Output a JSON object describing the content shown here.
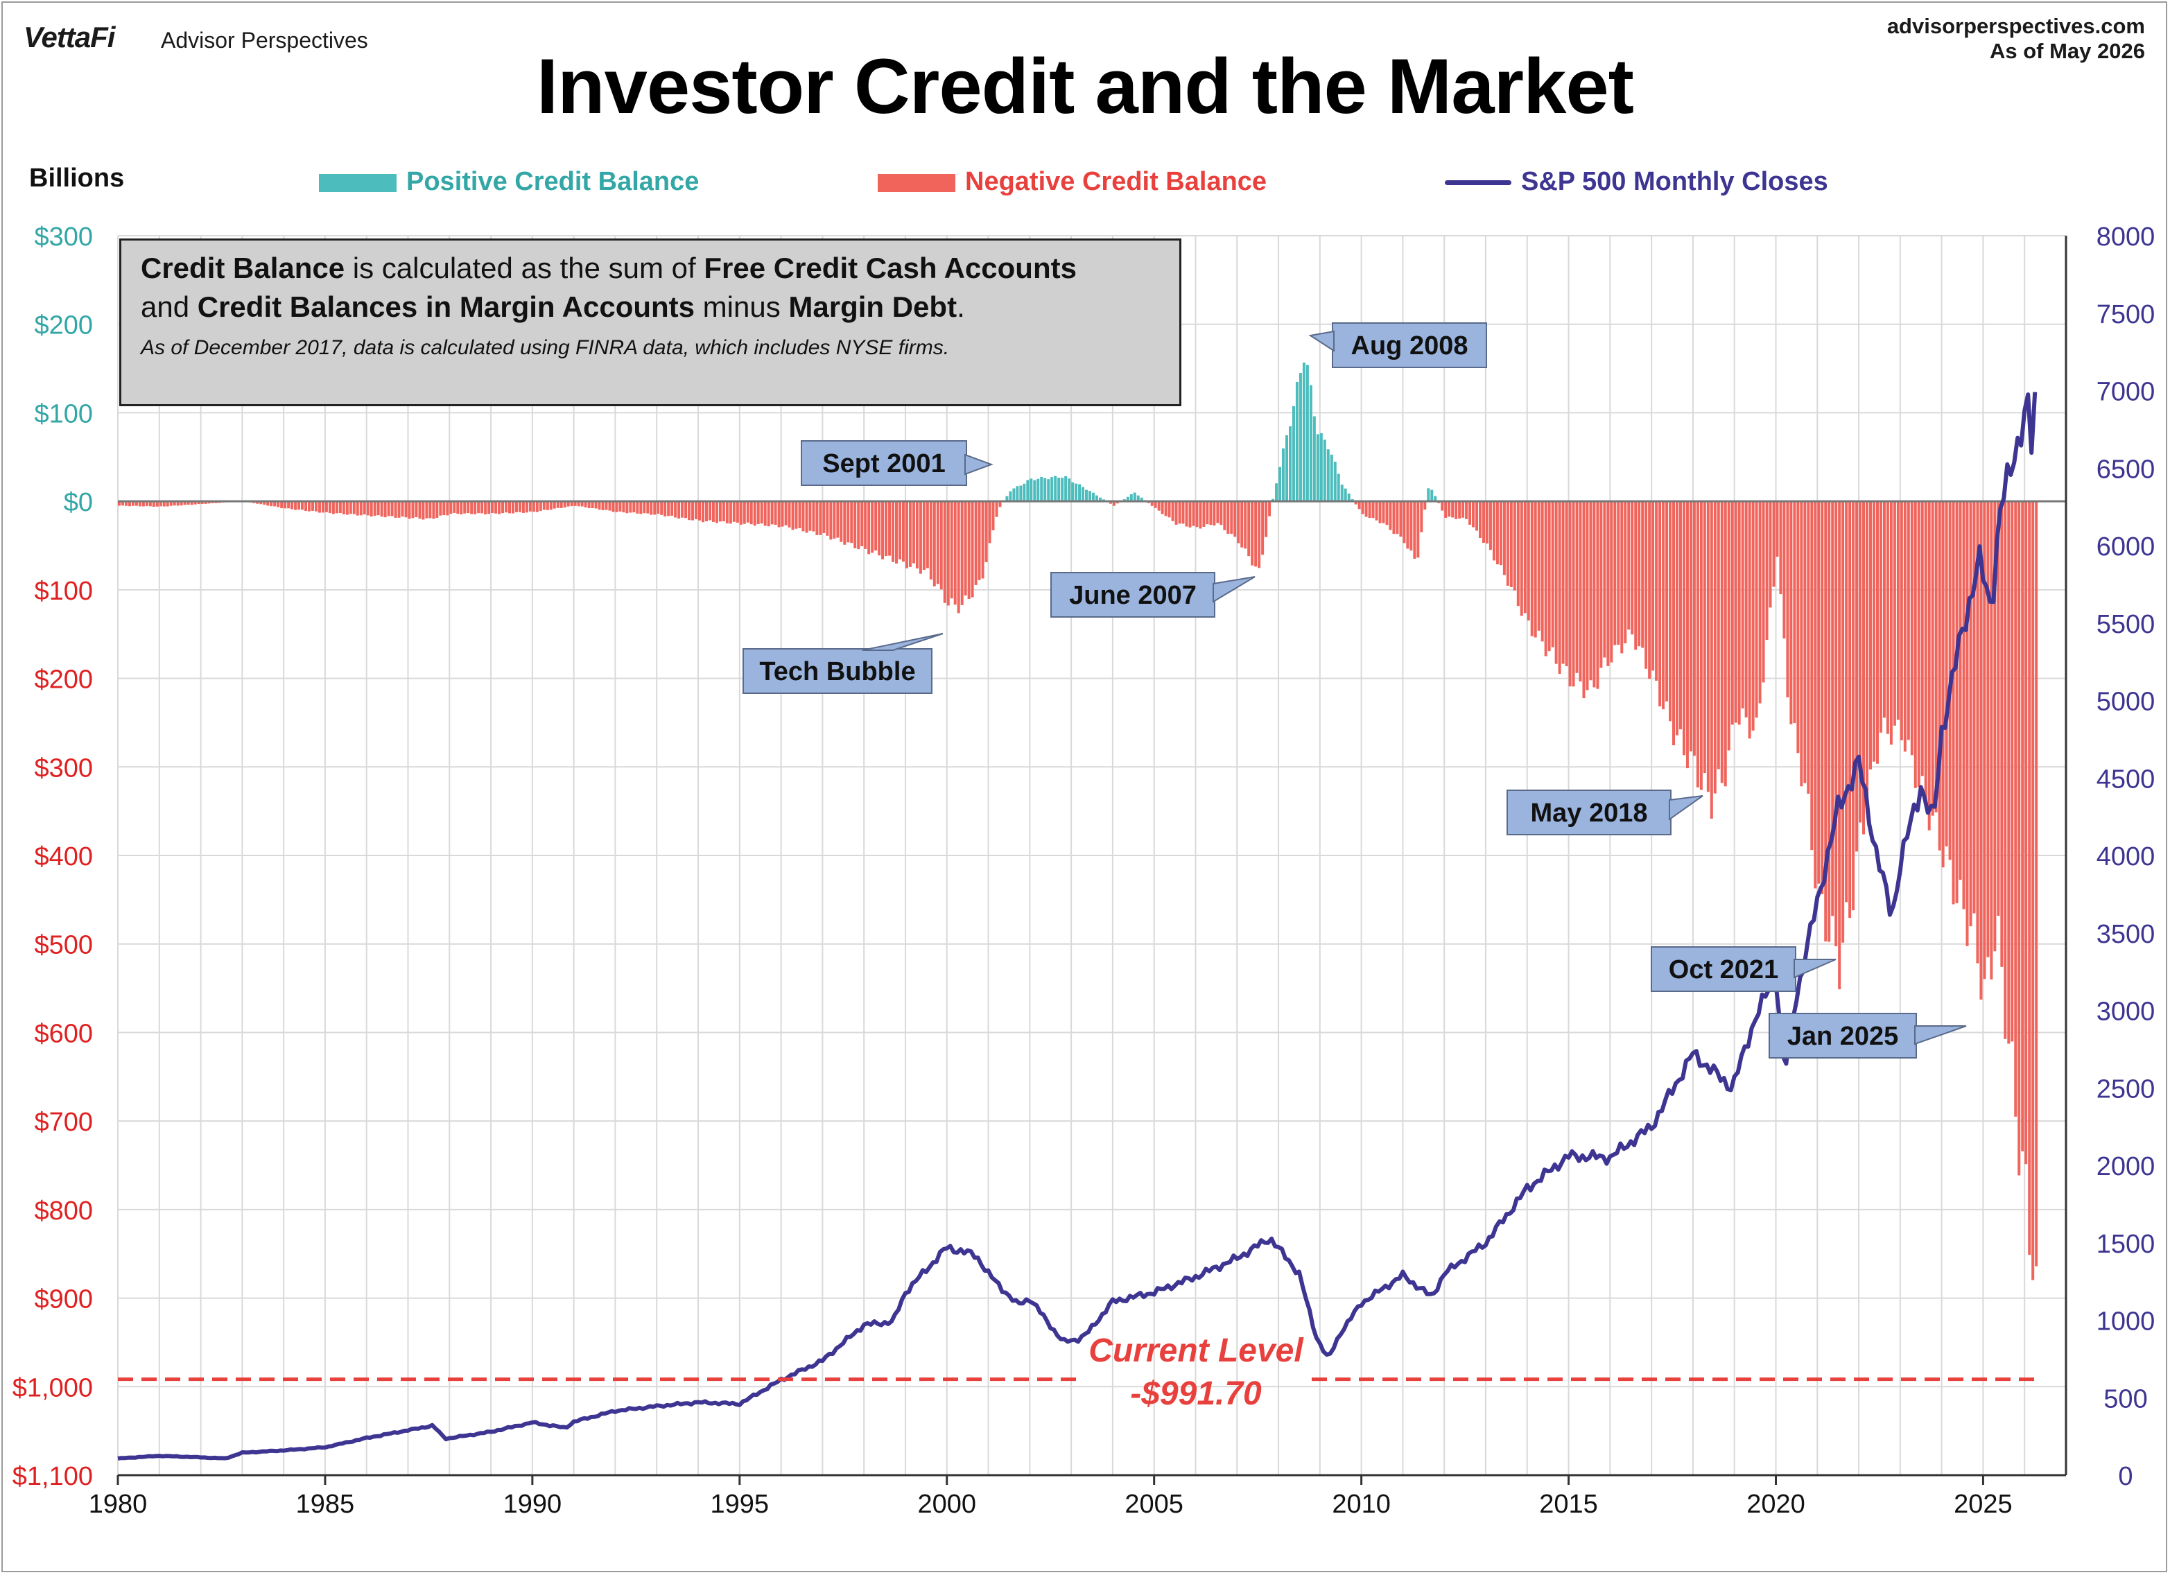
{
  "header": {
    "brand": "VettaFi",
    "brand_sub": "Advisor Perspectives",
    "site": "advisorperspectives.com",
    "as_of": "As of May 2026",
    "title": "Investor Credit and the Market",
    "units": "Billions"
  },
  "legend": {
    "positive": "Positive Credit Balance",
    "negative": "Negative Credit Balance",
    "sp500": "S&P 500 Monthly Closes"
  },
  "note": {
    "line1_b1": "Credit Balance",
    "line1_t1": " is calculated as the sum of ",
    "line1_b2": "Free Credit Cash Accounts",
    "line2_t0": "and ",
    "line2_b1": "Credit Balances in Margin Accounts",
    "line2_t1": " minus ",
    "line2_b2": "Margin Debt",
    "line2_t2": ".",
    "small": "As of December 2017, data is calculated using FINRA data, which includes NYSE firms."
  },
  "current_level": {
    "label": "Current Level",
    "value": "-$991.70"
  },
  "colors": {
    "positive": "#4cbcbc",
    "negative": "#f0645c",
    "sp500": "#3d3591",
    "left_pos_text": "#33a6a6",
    "left_neg_text": "#e02020",
    "right_text": "#3d3591",
    "callout_bg": "#9ab4de",
    "grid": "#d9d9d9"
  },
  "chart_data": {
    "type": "bar",
    "x_axis": {
      "range": [
        1980,
        2027
      ],
      "ticks": [
        1980,
        1985,
        1990,
        1995,
        2000,
        2005,
        2010,
        2015,
        2020,
        2025
      ]
    },
    "y_left": {
      "range": [
        -1100,
        300
      ],
      "ticks": [
        300,
        200,
        100,
        0,
        -100,
        -200,
        -300,
        -400,
        -500,
        -600,
        -700,
        -800,
        -900,
        -1000,
        -1100
      ],
      "tick_labels": [
        "$300",
        "$200",
        "$100",
        "$0",
        "$100",
        "$200",
        "$300",
        "$400",
        "$500",
        "$600",
        "$700",
        "$800",
        "$900",
        "$1,000",
        "$1,100"
      ]
    },
    "y_right": {
      "range": [
        0,
        8000
      ],
      "ticks": [
        8000,
        7500,
        7000,
        6500,
        6000,
        5500,
        5000,
        4500,
        4000,
        3500,
        3000,
        2500,
        2000,
        1500,
        1000,
        500,
        0
      ]
    },
    "grid": true,
    "credit_balance_anchors": [
      [
        1980.0,
        -5
      ],
      [
        1981.0,
        -6
      ],
      [
        1982.0,
        -3
      ],
      [
        1983.0,
        0
      ],
      [
        1984.0,
        -8
      ],
      [
        1985.0,
        -13
      ],
      [
        1986.0,
        -16
      ],
      [
        1987.5,
        -20
      ],
      [
        1988.0,
        -14
      ],
      [
        1989.0,
        -14
      ],
      [
        1990.0,
        -12
      ],
      [
        1991.0,
        -5
      ],
      [
        1992.0,
        -12
      ],
      [
        1993.0,
        -15
      ],
      [
        1994.0,
        -22
      ],
      [
        1995.0,
        -25
      ],
      [
        1996.0,
        -28
      ],
      [
        1997.0,
        -38
      ],
      [
        1998.0,
        -55
      ],
      [
        1998.6,
        -65
      ],
      [
        1999.5,
        -80
      ],
      [
        2000.0,
        -115
      ],
      [
        2000.3,
        -120
      ],
      [
        2000.8,
        -90
      ],
      [
        2001.2,
        -10
      ],
      [
        2001.5,
        12
      ],
      [
        2002.0,
        25
      ],
      [
        2002.8,
        28
      ],
      [
        2003.4,
        12
      ],
      [
        2004.0,
        -5
      ],
      [
        2004.5,
        10
      ],
      [
        2005.0,
        -8
      ],
      [
        2005.5,
        -25
      ],
      [
        2006.0,
        -30
      ],
      [
        2006.5,
        -25
      ],
      [
        2007.0,
        -45
      ],
      [
        2007.5,
        -80
      ],
      [
        2007.8,
        -5
      ],
      [
        2008.0,
        40
      ],
      [
        2008.3,
        100
      ],
      [
        2008.6,
        170
      ],
      [
        2008.9,
        80
      ],
      [
        2009.2,
        60
      ],
      [
        2009.5,
        20
      ],
      [
        2010.0,
        -15
      ],
      [
        2010.5,
        -25
      ],
      [
        2011.0,
        -45
      ],
      [
        2011.3,
        -70
      ],
      [
        2011.6,
        20
      ],
      [
        2012.0,
        -18
      ],
      [
        2012.5,
        -20
      ],
      [
        2013.0,
        -50
      ],
      [
        2013.5,
        -90
      ],
      [
        2014.0,
        -140
      ],
      [
        2014.5,
        -170
      ],
      [
        2015.0,
        -200
      ],
      [
        2015.5,
        -215
      ],
      [
        2015.9,
        -180
      ],
      [
        2016.5,
        -150
      ],
      [
        2017.0,
        -200
      ],
      [
        2017.5,
        -260
      ],
      [
        2018.0,
        -300
      ],
      [
        2018.4,
        -340
      ],
      [
        2018.8,
        -300
      ],
      [
        2019.0,
        -240
      ],
      [
        2019.5,
        -260
      ],
      [
        2020.0,
        -60
      ],
      [
        2020.3,
        -240
      ],
      [
        2020.7,
        -330
      ],
      [
        2021.0,
        -450
      ],
      [
        2021.5,
        -520
      ],
      [
        2021.8,
        -450
      ],
      [
        2022.0,
        -380
      ],
      [
        2022.5,
        -260
      ],
      [
        2023.0,
        -260
      ],
      [
        2023.5,
        -330
      ],
      [
        2023.9,
        -380
      ],
      [
        2024.3,
        -440
      ],
      [
        2024.8,
        -500
      ],
      [
        2025.0,
        -560
      ],
      [
        2025.3,
        -480
      ],
      [
        2025.6,
        -620
      ],
      [
        2025.9,
        -750
      ],
      [
        2026.2,
        -860
      ],
      [
        2026.33,
        -991.7
      ]
    ],
    "sp500_anchors": [
      [
        1980.0,
        108
      ],
      [
        1981.0,
        125
      ],
      [
        1982.0,
        115
      ],
      [
        1982.6,
        108
      ],
      [
        1983.0,
        145
      ],
      [
        1984.0,
        160
      ],
      [
        1985.0,
        180
      ],
      [
        1986.0,
        240
      ],
      [
        1987.6,
        320
      ],
      [
        1987.9,
        235
      ],
      [
        1989.0,
        280
      ],
      [
        1990.0,
        340
      ],
      [
        1990.8,
        305
      ],
      [
        1991.0,
        345
      ],
      [
        1992.0,
        415
      ],
      [
        1993.0,
        445
      ],
      [
        1994.0,
        470
      ],
      [
        1995.0,
        460
      ],
      [
        1996.0,
        615
      ],
      [
        1997.0,
        740
      ],
      [
        1998.0,
        970
      ],
      [
        1998.7,
        990
      ],
      [
        1999.0,
        1180
      ],
      [
        2000.0,
        1470
      ],
      [
        2000.7,
        1420
      ],
      [
        2001.0,
        1300
      ],
      [
        2001.7,
        1100
      ],
      [
        2002.0,
        1140
      ],
      [
        2002.8,
        860
      ],
      [
        2003.2,
        880
      ],
      [
        2003.4,
        920
      ],
      [
        2004.0,
        1120
      ],
      [
        2005.0,
        1180
      ],
      [
        2006.0,
        1280
      ],
      [
        2007.0,
        1400
      ],
      [
        2007.8,
        1530
      ],
      [
        2008.5,
        1300
      ],
      [
        2008.9,
        900
      ],
      [
        2009.2,
        750
      ],
      [
        2009.5,
        920
      ],
      [
        2010.0,
        1110
      ],
      [
        2011.0,
        1290
      ],
      [
        2011.7,
        1150
      ],
      [
        2012.0,
        1300
      ],
      [
        2013.0,
        1500
      ],
      [
        2014.0,
        1850
      ],
      [
        2015.0,
        2060
      ],
      [
        2016.0,
        2050
      ],
      [
        2017.0,
        2250
      ],
      [
        2018.0,
        2720
      ],
      [
        2018.95,
        2500
      ],
      [
        2019.5,
        2950
      ],
      [
        2020.0,
        3230
      ],
      [
        2020.2,
        2580
      ],
      [
        2020.5,
        3100
      ],
      [
        2021.0,
        3700
      ],
      [
        2021.5,
        4300
      ],
      [
        2022.0,
        4600
      ],
      [
        2022.4,
        4050
      ],
      [
        2022.8,
        3600
      ],
      [
        2023.0,
        3950
      ],
      [
        2023.5,
        4450
      ],
      [
        2023.8,
        4200
      ],
      [
        2024.0,
        4800
      ],
      [
        2024.5,
        5450
      ],
      [
        2024.9,
        5900
      ],
      [
        2025.2,
        5600
      ],
      [
        2025.4,
        6200
      ],
      [
        2025.8,
        6650
      ],
      [
        2026.1,
        6900
      ],
      [
        2026.2,
        6500
      ],
      [
        2026.33,
        7590
      ]
    ],
    "callouts": [
      {
        "label": "Sept 2001"
      },
      {
        "label": "Aug 2008"
      },
      {
        "label": "Tech Bubble"
      },
      {
        "label": "June 2007"
      },
      {
        "label": "May 2018"
      },
      {
        "label": "Oct 2021"
      },
      {
        "label": "Jan 2025"
      }
    ],
    "current_level_value": -991.7
  }
}
